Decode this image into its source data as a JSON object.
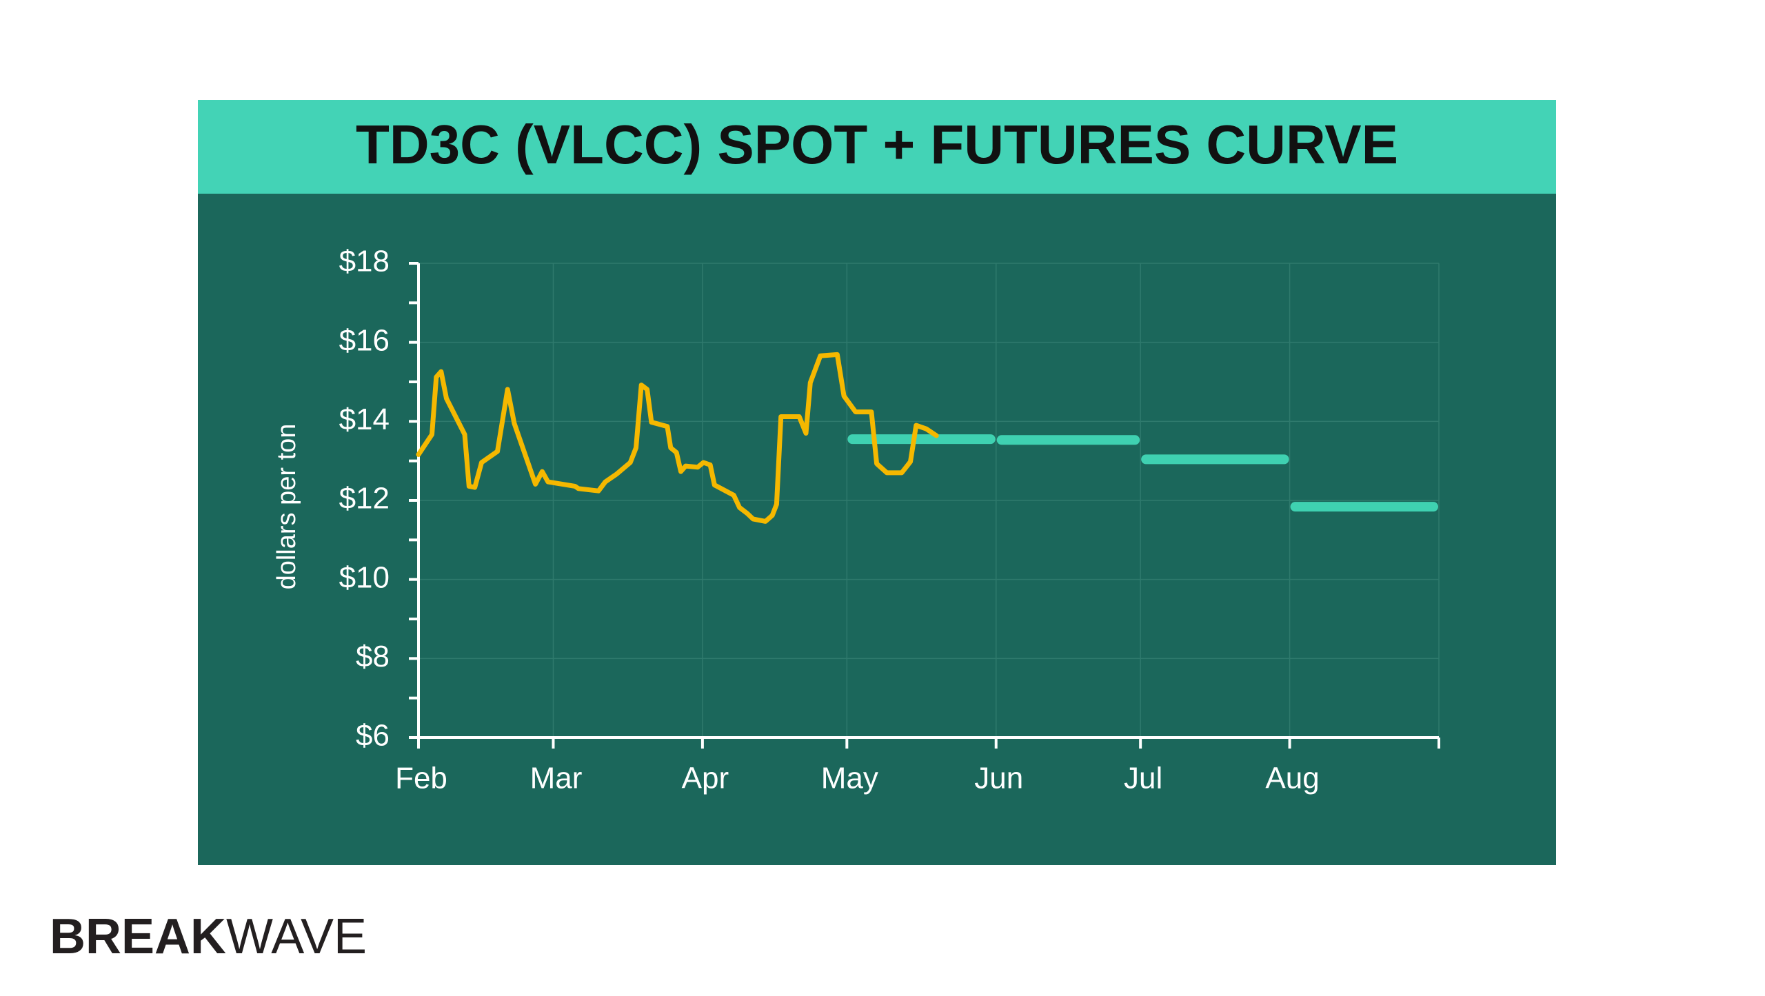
{
  "chart_data": {
    "type": "line",
    "title": "TD3C (VLCC) SPOT  +  FUTURES CURVE",
    "y_label": "dollars per ton",
    "xlim": [
      0,
      212
    ],
    "xticks": [
      {
        "value": 0,
        "label": "Feb"
      },
      {
        "value": 28,
        "label": "Mar"
      },
      {
        "value": 59,
        "label": "Apr"
      },
      {
        "value": 89,
        "label": "May"
      },
      {
        "value": 120,
        "label": "Jun"
      },
      {
        "value": 150,
        "label": "Jul"
      },
      {
        "value": 181,
        "label": "Aug"
      },
      {
        "value": 212,
        "label": null
      }
    ],
    "ylim": [
      6,
      18
    ],
    "yticks": [
      {
        "value": 6,
        "label": "$6"
      },
      {
        "value": 8,
        "label": "$8"
      },
      {
        "value": 10,
        "label": "$10"
      },
      {
        "value": 12,
        "label": "$12"
      },
      {
        "value": 14,
        "label": "$14"
      },
      {
        "value": 16,
        "label": "$16"
      },
      {
        "value": 18,
        "label": "$18"
      }
    ],
    "yminorticks": [
      7,
      9,
      11,
      13,
      15,
      17
    ],
    "grid": true,
    "series": [
      {
        "color": "#f5b800",
        "x": [
          0,
          2.8,
          3.7,
          4.7,
          5.8,
          9.6,
          10.5,
          11.7,
          13.1,
          16.4,
          18.5,
          19.9,
          24.3,
          25.7,
          26.9,
          32.5,
          33.2,
          37.4,
          38.8,
          41.2,
          44.0,
          45.2,
          46.3,
          47.5,
          48.4,
          51.7,
          52.4,
          53.6,
          54.5,
          55.5,
          58.0,
          59.2,
          60.6,
          61.5,
          65.5,
          66.7,
          68.3,
          69.5,
          72.1,
          73.5,
          74.4,
          75.3,
          79.1,
          80.5,
          81.4,
          83.5,
          87.0,
          88.4,
          90.8,
          94.1,
          95.2,
          97.3,
          100.4,
          102.2,
          103.4,
          105.5,
          107.6
        ],
        "values": [
          13.16,
          13.67,
          15.12,
          15.26,
          14.58,
          13.67,
          12.36,
          12.33,
          12.96,
          13.24,
          14.81,
          13.95,
          12.41,
          12.73,
          12.47,
          12.36,
          12.3,
          12.24,
          12.47,
          12.67,
          12.96,
          13.33,
          14.92,
          14.81,
          13.98,
          13.87,
          13.33,
          13.21,
          12.73,
          12.87,
          12.84,
          12.96,
          12.9,
          12.39,
          12.13,
          11.82,
          11.67,
          11.53,
          11.47,
          11.62,
          11.9,
          14.12,
          14.12,
          13.7,
          14.98,
          15.66,
          15.69,
          14.64,
          14.24,
          14.24,
          12.93,
          12.7,
          12.7,
          12.98,
          13.9,
          13.81,
          13.64
        ]
      }
    ],
    "futures": {
      "color": "#3fd1b1",
      "x": [
        89,
        120,
        150,
        181
      ],
      "values": [
        13.55,
        13.53,
        13.04,
        11.84
      ]
    }
  },
  "logo": {
    "bold": "BREAK",
    "light": "WAVE"
  }
}
